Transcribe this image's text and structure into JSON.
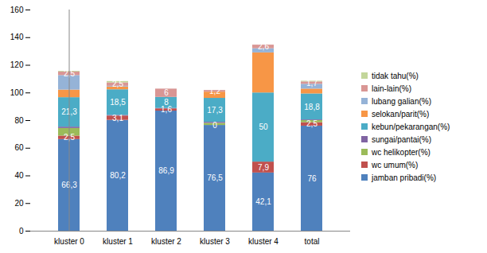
{
  "chart_data": {
    "type": "bar",
    "stacked": true,
    "grid": false,
    "legend": "right",
    "categories": [
      "kluster 0",
      "kluster 1",
      "kluster 2",
      "kluster 3",
      "kluster 4",
      "total"
    ],
    "ylim": [
      0,
      160
    ],
    "yticks": [
      0,
      20,
      40,
      60,
      80,
      100,
      120,
      140,
      160
    ],
    "series": [
      {
        "name": "jamban pribadi(%)",
        "color": "#4F81BD",
        "values": [
          66.3,
          80.2,
          86.9,
          76.5,
          42.1,
          76
        ],
        "data_labels": true,
        "value_labels": [
          "66,3",
          "80,2",
          "86,9",
          "76,5",
          "42,1",
          "76"
        ]
      },
      {
        "name": "wc umum(%)",
        "color": "#C0504D",
        "values": [
          2.5,
          3.1,
          1.6,
          0,
          7.9,
          2.5
        ],
        "data_labels": true,
        "value_labels": [
          "2,5",
          "3,1",
          "1,6",
          "0",
          "7,9",
          "2,5"
        ]
      },
      {
        "name": "wc helikopter(%)",
        "color": "#9BBB59",
        "values": [
          5.5,
          0,
          0,
          1.5,
          0,
          1.5
        ]
      },
      {
        "name": "sungai/pantai(%)",
        "color": "#8064A2",
        "values": [
          1,
          0.5,
          0.3,
          0.8,
          0,
          0.5
        ]
      },
      {
        "name": "kebun/pekarangan(%)",
        "color": "#4BACC6",
        "values": [
          21.3,
          18.5,
          8,
          17.3,
          50,
          18.8
        ],
        "data_labels": true,
        "value_labels": [
          "21,3",
          "18,5",
          "8",
          "17,3",
          "50",
          "18,8"
        ]
      },
      {
        "name": "selokan/parit(%)",
        "color": "#F79646",
        "values": [
          5.5,
          2,
          0,
          4.5,
          29,
          3.5
        ]
      },
      {
        "name": "lubang galian(%)",
        "color": "#95B3D7",
        "values": [
          10.5,
          0.5,
          0,
          0,
          3,
          3.5
        ]
      },
      {
        "name": "lain-lain(%)",
        "color": "#D99694",
        "values": [
          2.5,
          2.5,
          6,
          1.2,
          2.6,
          1.7
        ],
        "data_labels": true,
        "value_labels": [
          "2,5",
          "2,5",
          "6",
          "1,2",
          "2,6",
          "1,7"
        ]
      },
      {
        "name": "tidak tahu(%)",
        "color": "#C3D69B",
        "values": [
          0.5,
          1,
          0,
          0,
          0,
          0.5
        ]
      }
    ]
  }
}
